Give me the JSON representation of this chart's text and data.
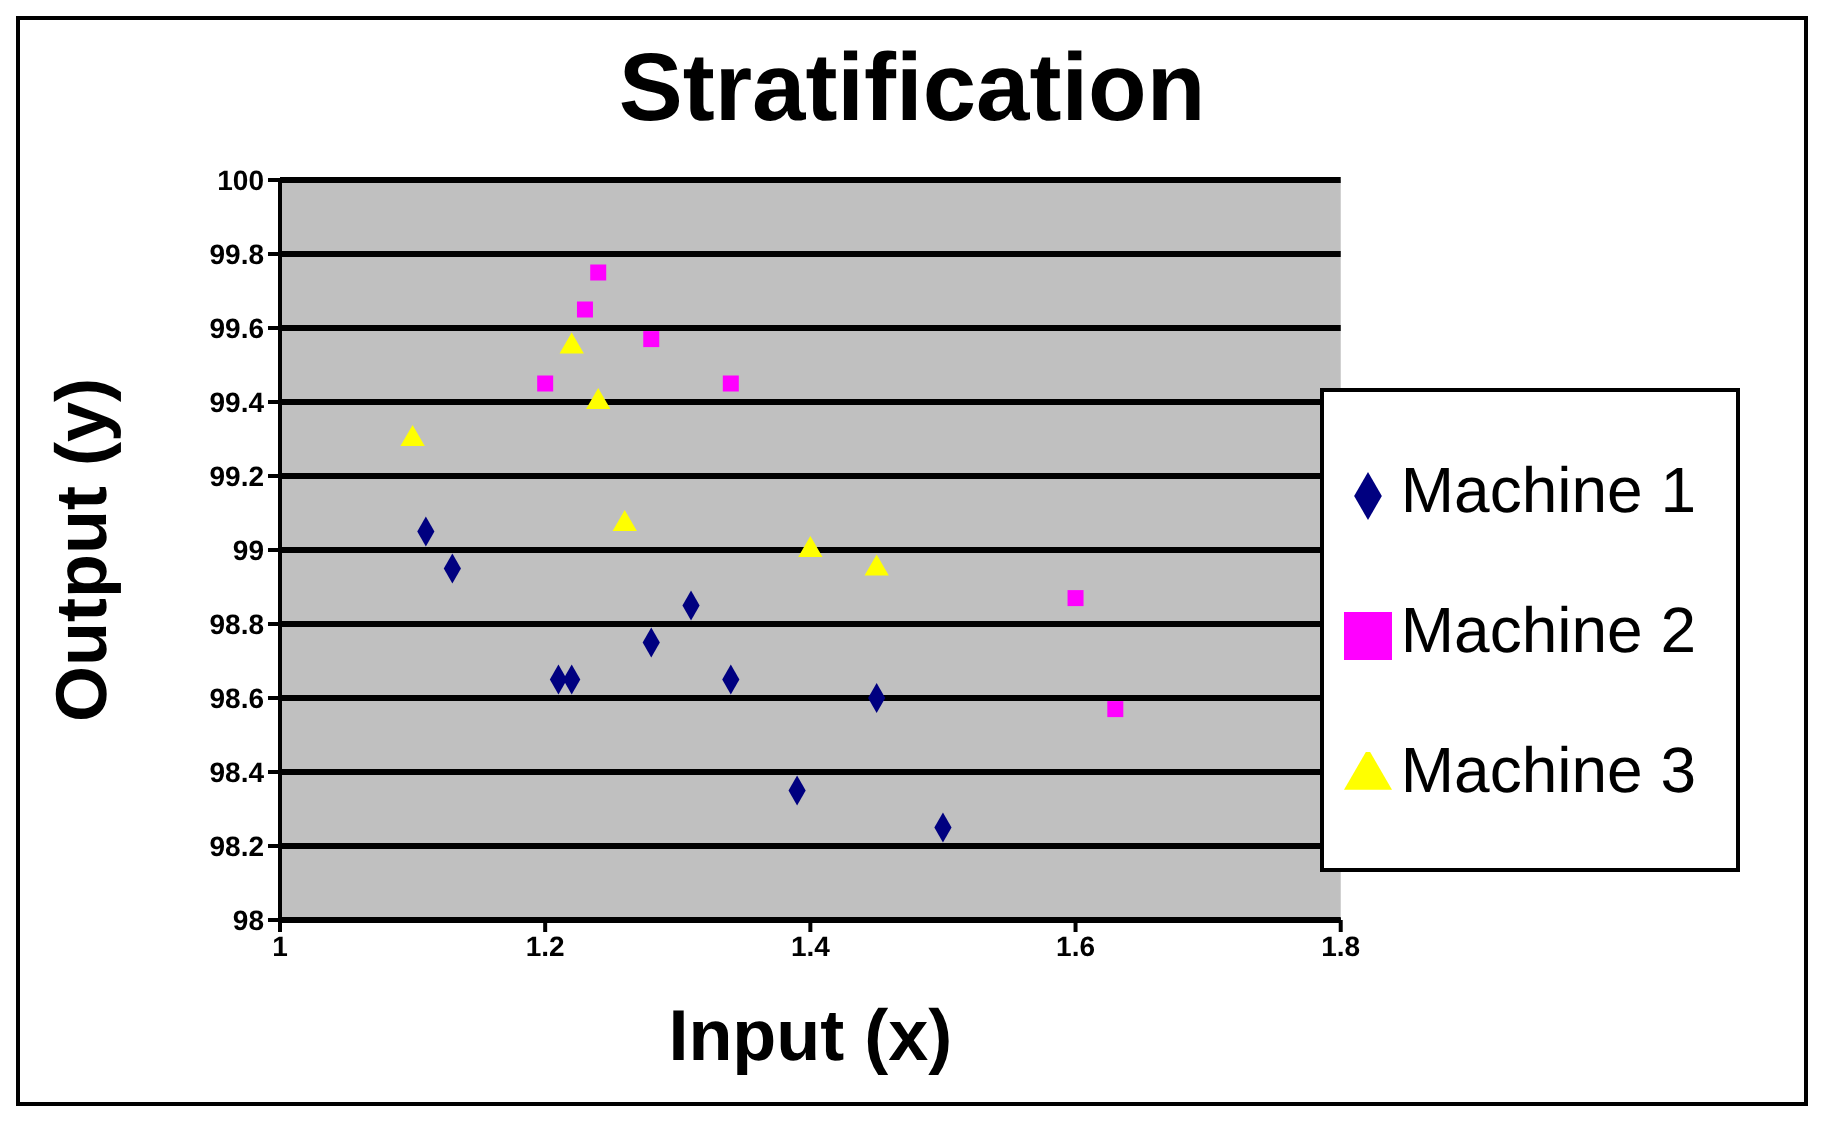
{
  "chart_data": {
    "type": "scatter",
    "title": "Stratification",
    "xlabel": "Input (x)",
    "ylabel": "Output (y)",
    "xlim": [
      1,
      1.8
    ],
    "xticks": [
      1,
      1.2,
      1.4,
      1.6,
      1.8
    ],
    "ylim": [
      98,
      100
    ],
    "yticks": [
      98,
      98.2,
      98.4,
      98.6,
      98.8,
      99,
      99.2,
      99.4,
      99.6,
      99.8,
      100
    ],
    "grid": "y",
    "legend": "right",
    "series": [
      {
        "name": "Machine 1",
        "color": "#000080",
        "marker": "diamond",
        "x": [
          1.11,
          1.13,
          1.21,
          1.22,
          1.28,
          1.31,
          1.34,
          1.39,
          1.45,
          1.5
        ],
        "values": [
          99.05,
          98.95,
          98.65,
          98.65,
          98.75,
          98.85,
          98.65,
          98.35,
          98.6,
          98.25
        ]
      },
      {
        "name": "Machine 2",
        "color": "#ff00ff",
        "marker": "square",
        "x": [
          1.2,
          1.23,
          1.24,
          1.28,
          1.34,
          1.6,
          1.63
        ],
        "values": [
          99.45,
          99.65,
          99.75,
          99.57,
          99.45,
          98.87,
          98.57
        ]
      },
      {
        "name": "Machine 3",
        "color": "#ffff00",
        "marker": "triangle",
        "x": [
          1.1,
          1.22,
          1.24,
          1.26,
          1.4,
          1.45
        ],
        "values": [
          99.3,
          99.55,
          99.4,
          99.07,
          99.0,
          98.95
        ]
      }
    ]
  }
}
